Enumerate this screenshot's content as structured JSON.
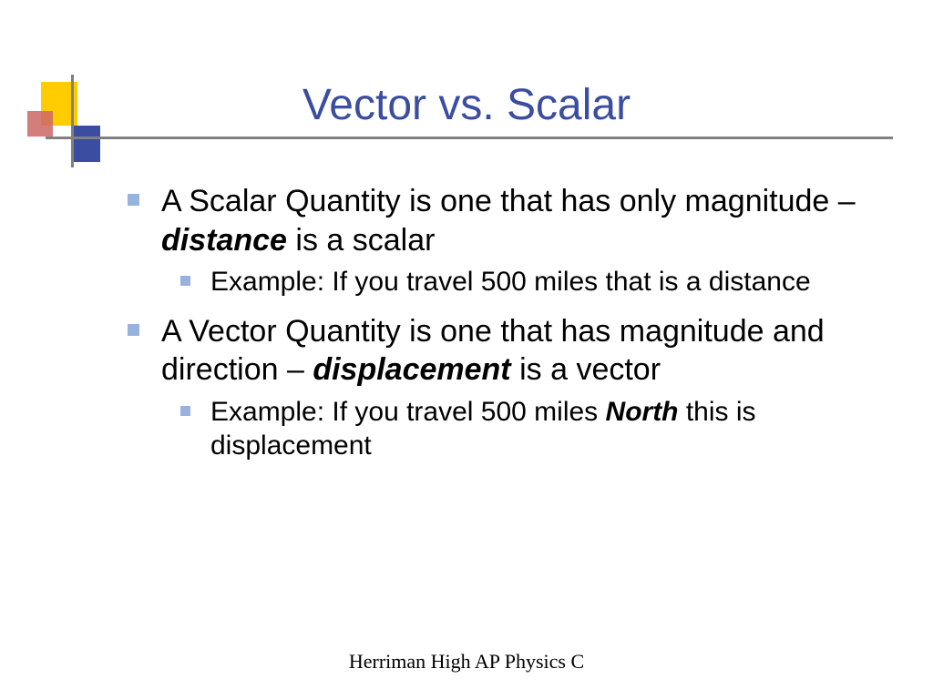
{
  "title": "Vector vs. Scalar",
  "colors": {
    "title_color": "#3b4da0",
    "bullet_color": "#97b2de",
    "text_color": "#000000",
    "line_color": "#808080",
    "background": "#ffffff",
    "deco_yellow": "#ffcc00",
    "deco_red": "#cc6666",
    "deco_blue": "#3b4da0"
  },
  "typography": {
    "title_fontsize": 48,
    "l1_fontsize": 34,
    "l2_fontsize": 30,
    "footer_fontsize": 22,
    "body_font": "Verdana",
    "footer_font": "Times New Roman"
  },
  "bullets": [
    {
      "level": 1,
      "segments": [
        {
          "text": "A Scalar Quantity is one that has only magnitude – ",
          "emph": false
        },
        {
          "text": "distance",
          "emph": true
        },
        {
          "text": " is a scalar",
          "emph": false
        }
      ]
    },
    {
      "level": 2,
      "segments": [
        {
          "text": "Example: If you travel 500 miles that is a distance",
          "emph": false
        }
      ]
    },
    {
      "level": 1,
      "segments": [
        {
          "text": "A Vector Quantity is one that has magnitude and direction – ",
          "emph": false
        },
        {
          "text": "displacement",
          "emph": true
        },
        {
          "text": " is a vector",
          "emph": false
        }
      ]
    },
    {
      "level": 2,
      "segments": [
        {
          "text": "Example: If you travel 500 miles ",
          "emph": false
        },
        {
          "text": "North",
          "emph": true
        },
        {
          "text": " this is displacement",
          "emph": false
        }
      ]
    }
  ],
  "footer": "Herriman High AP Physics C"
}
